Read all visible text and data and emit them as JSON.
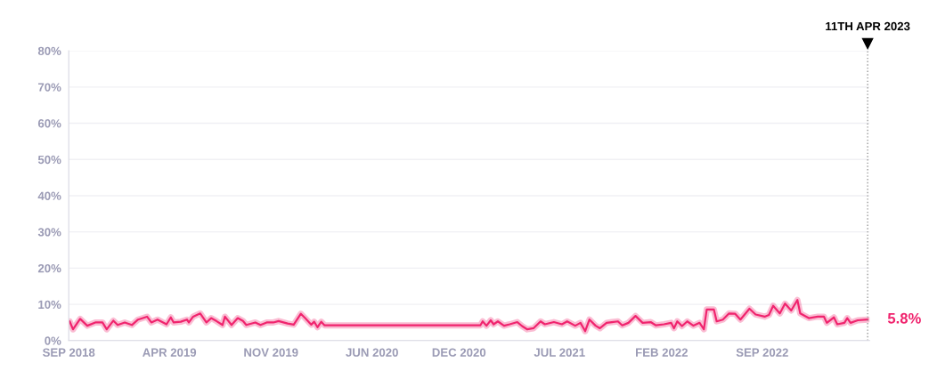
{
  "chart_data": {
    "type": "line",
    "x": [
      "2018-09-03",
      "2018-09-10",
      "2018-09-25",
      "2018-10-10",
      "2018-10-27",
      "2018-11-11",
      "2018-11-20",
      "2018-12-04",
      "2018-12-13",
      "2018-12-28",
      "2019-01-12",
      "2019-01-25",
      "2019-02-13",
      "2019-02-22",
      "2019-03-07",
      "2019-03-26",
      "2019-04-04",
      "2019-04-10",
      "2019-04-25",
      "2019-05-08",
      "2019-05-12",
      "2019-05-21",
      "2019-06-05",
      "2019-06-18",
      "2019-06-28",
      "2019-07-09",
      "2019-07-22",
      "2019-07-27",
      "2019-08-10",
      "2019-08-23",
      "2019-09-03",
      "2019-09-10",
      "2019-09-29",
      "2019-10-10",
      "2019-10-23",
      "2019-11-06",
      "2019-11-17",
      "2019-12-06",
      "2019-12-19",
      "2020-01-03",
      "2020-01-12",
      "2020-01-25",
      "2020-01-31",
      "2020-02-07",
      "2020-02-15",
      "2020-02-22",
      "2021-01-15",
      "2021-01-20",
      "2021-01-28",
      "2021-02-06",
      "2021-02-12",
      "2021-02-21",
      "2021-03-06",
      "2021-03-18",
      "2021-04-03",
      "2021-04-13",
      "2021-04-24",
      "2021-05-07",
      "2021-05-22",
      "2021-05-31",
      "2021-06-19",
      "2021-07-06",
      "2021-07-17",
      "2021-08-03",
      "2021-08-14",
      "2021-08-24",
      "2021-09-02",
      "2021-09-15",
      "2021-09-24",
      "2021-10-08",
      "2021-10-19",
      "2021-11-01",
      "2021-11-10",
      "2021-11-23",
      "2021-12-08",
      "2021-12-23",
      "2022-01-09",
      "2022-01-20",
      "2022-02-06",
      "2022-02-21",
      "2022-02-27",
      "2022-03-06",
      "2022-03-16",
      "2022-03-27",
      "2022-04-09",
      "2022-04-22",
      "2022-05-01",
      "2022-05-07",
      "2022-05-22",
      "2022-05-28",
      "2022-06-10",
      "2022-06-23",
      "2022-07-06",
      "2022-07-17",
      "2022-08-05",
      "2022-08-18",
      "2022-09-06",
      "2022-09-15",
      "2022-09-24",
      "2022-10-08",
      "2022-10-19",
      "2022-11-01",
      "2022-11-14",
      "2022-11-20",
      "2022-12-08",
      "2022-12-27",
      "2023-01-09",
      "2023-01-15",
      "2023-01-30",
      "2023-02-06",
      "2023-02-21",
      "2023-02-27",
      "2023-03-06",
      "2023-03-21",
      "2023-04-11"
    ],
    "series": [
      {
        "color": "#f0246e",
        "values": [
          5.3,
          3.1,
          6.0,
          4.1,
          5.0,
          5.0,
          3.1,
          5.5,
          4.3,
          5.0,
          4.3,
          5.8,
          6.6,
          5.0,
          5.8,
          4.5,
          6.4,
          5.0,
          5.2,
          5.8,
          5.0,
          6.6,
          7.5,
          5.0,
          6.2,
          5.4,
          4.3,
          6.6,
          4.3,
          6.2,
          5.4,
          4.3,
          5.0,
          4.3,
          5.0,
          5.0,
          5.4,
          4.7,
          4.4,
          7.4,
          6.2,
          4.4,
          5.2,
          3.7,
          5.2,
          4.2,
          4.2,
          5.3,
          4.1,
          5.6,
          4.5,
          5.3,
          4.1,
          4.5,
          5.1,
          4.0,
          3.1,
          3.4,
          5.3,
          4.5,
          5.1,
          4.5,
          5.3,
          4.1,
          4.9,
          2.6,
          5.8,
          4.1,
          3.4,
          4.9,
          5.1,
          5.3,
          4.2,
          4.9,
          6.8,
          4.9,
          5.1,
          4.2,
          4.5,
          4.9,
          3.4,
          5.3,
          4.0,
          5.3,
          4.1,
          4.9,
          3.1,
          8.6,
          8.6,
          5.3,
          5.8,
          7.5,
          7.4,
          5.8,
          8.8,
          7.2,
          6.6,
          7.1,
          9.6,
          7.5,
          10.2,
          8.3,
          11.2,
          7.5,
          6.2,
          6.6,
          6.6,
          4.9,
          6.4,
          4.5,
          4.9,
          6.2,
          4.9,
          5.6,
          5.8
        ]
      }
    ],
    "xlim": [
      "2018-09-01",
      "2023-04-15"
    ],
    "xticks": [
      {
        "value": "2018-09-01",
        "label": "SEP 2018"
      },
      {
        "value": "2019-04-01",
        "label": "APR 2019"
      },
      {
        "value": "2019-11-01",
        "label": "NOV 2019"
      },
      {
        "value": "2020-06-01",
        "label": "JUN 2020"
      },
      {
        "value": "2020-12-01",
        "label": "DEC 2020"
      },
      {
        "value": "2021-07-01",
        "label": "JUL 2021"
      },
      {
        "value": "2022-02-01",
        "label": "FEB 2022"
      },
      {
        "value": "2022-09-01",
        "label": "SEP 2022"
      }
    ],
    "ylim": [
      0,
      80
    ],
    "yticks": [
      {
        "value": 0,
        "label": "0%"
      },
      {
        "value": 10,
        "label": "10%"
      },
      {
        "value": 20,
        "label": "20%"
      },
      {
        "value": 30,
        "label": "30%"
      },
      {
        "value": 40,
        "label": "40%"
      },
      {
        "value": 50,
        "label": "50%"
      },
      {
        "value": 60,
        "label": "60%"
      },
      {
        "value": 70,
        "label": "70%"
      },
      {
        "value": 80,
        "label": "80%"
      }
    ],
    "grid": "y",
    "ref_lines": [
      {
        "axis": "x",
        "value": "2023-04-11",
        "label": "11TH APR 2023",
        "color": "#999999",
        "line_style": "dotted"
      }
    ],
    "annotations": [
      {
        "text": "5.8%",
        "x": "2023-04-11",
        "y": 5.8
      }
    ]
  }
}
